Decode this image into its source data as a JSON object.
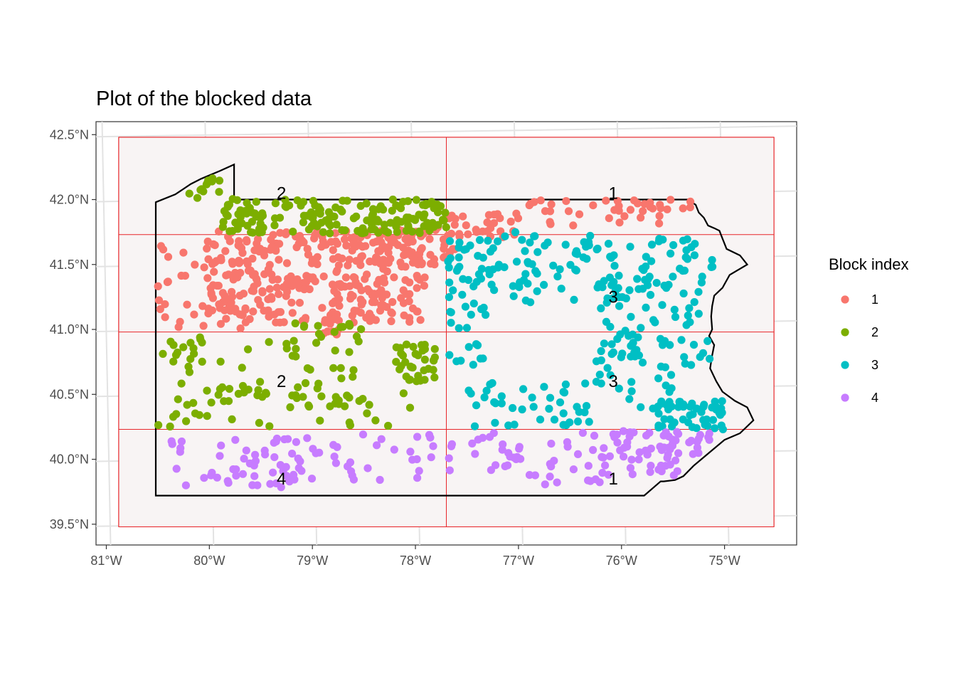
{
  "chart_data": {
    "type": "scatter",
    "title": "Plot of the blocked data",
    "xlabel": "",
    "ylabel": "",
    "x_ticks": [
      "81°W",
      "80°W",
      "79°W",
      "78°W",
      "77°W",
      "76°W",
      "75°W"
    ],
    "x_tick_values": [
      -81,
      -80,
      -79,
      -78,
      -77,
      -76,
      -75
    ],
    "y_ticks": [
      "42.5°N",
      "42.0°N",
      "41.5°N",
      "41.0°N",
      "40.5°N",
      "40.0°N",
      "39.5°N"
    ],
    "y_tick_values": [
      42.5,
      42.0,
      41.5,
      41.0,
      40.5,
      40.0,
      39.5
    ],
    "xlim": [
      -81.1,
      -74.3
    ],
    "ylim": [
      39.34,
      42.6
    ],
    "grid": true,
    "legend": {
      "title": "Block index",
      "position": "right",
      "entries": [
        {
          "label": "1",
          "color": "#F8766D"
        },
        {
          "label": "2",
          "color": "#7CAE00"
        },
        {
          "label": "3",
          "color": "#00BFC4"
        },
        {
          "label": "4",
          "color": "#C77CFF"
        }
      ]
    },
    "blocks": {
      "x_breaks": [
        -80.88,
        -77.7,
        -74.52
      ],
      "y_breaks": [
        39.48,
        40.23,
        40.98,
        41.73,
        42.48
      ],
      "fill": "#f8f4f4",
      "line_color": "#e8262a"
    },
    "block_labels": [
      {
        "text": "2",
        "x": -79.3,
        "y": 42.05
      },
      {
        "text": "1",
        "x": -76.08,
        "y": 42.05
      },
      {
        "text": "3",
        "x": -76.08,
        "y": 41.25
      },
      {
        "text": "2",
        "x": -79.3,
        "y": 40.6
      },
      {
        "text": "3",
        "x": -76.08,
        "y": 40.6
      },
      {
        "text": "4",
        "x": -79.3,
        "y": 39.85
      },
      {
        "text": "1",
        "x": -76.08,
        "y": 39.85
      }
    ],
    "boundary": [
      [
        -80.52,
        41.98
      ],
      [
        -80.33,
        42.04
      ],
      [
        -80.18,
        42.12
      ],
      [
        -80.08,
        42.16
      ],
      [
        -79.9,
        42.22
      ],
      [
        -79.76,
        42.27
      ],
      [
        -79.76,
        42.0
      ],
      [
        -78.5,
        42.0
      ],
      [
        -77.0,
        42.0
      ],
      [
        -75.36,
        42.0
      ],
      [
        -75.28,
        41.96
      ],
      [
        -75.25,
        41.9
      ],
      [
        -75.2,
        41.86
      ],
      [
        -75.16,
        41.8
      ],
      [
        -75.1,
        41.78
      ],
      [
        -75.05,
        41.76
      ],
      [
        -75.02,
        41.7
      ],
      [
        -74.98,
        41.62
      ],
      [
        -74.85,
        41.57
      ],
      [
        -74.78,
        41.5
      ],
      [
        -74.95,
        41.42
      ],
      [
        -75.02,
        41.32
      ],
      [
        -75.1,
        41.26
      ],
      [
        -75.12,
        41.18
      ],
      [
        -75.13,
        41.1
      ],
      [
        -75.12,
        41.0
      ],
      [
        -75.15,
        40.95
      ],
      [
        -75.1,
        40.88
      ],
      [
        -75.12,
        40.8
      ],
      [
        -75.14,
        40.7
      ],
      [
        -75.08,
        40.6
      ],
      [
        -75.02,
        40.52
      ],
      [
        -74.9,
        40.45
      ],
      [
        -74.78,
        40.4
      ],
      [
        -74.72,
        40.3
      ],
      [
        -74.85,
        40.2
      ],
      [
        -75.0,
        40.15
      ],
      [
        -75.15,
        40.05
      ],
      [
        -75.3,
        39.95
      ],
      [
        -75.4,
        39.87
      ],
      [
        -75.48,
        39.84
      ],
      [
        -75.59,
        39.83
      ],
      [
        -75.62,
        39.83
      ],
      [
        -75.78,
        39.72
      ],
      [
        -76.5,
        39.72
      ],
      [
        -77.5,
        39.72
      ],
      [
        -78.5,
        39.72
      ],
      [
        -79.5,
        39.72
      ],
      [
        -80.52,
        39.72
      ],
      [
        -80.52,
        40.5
      ],
      [
        -80.52,
        41.0
      ],
      [
        -80.52,
        41.98
      ]
    ],
    "series": [
      {
        "name": "1",
        "color": "#F8766D",
        "regions": [
          {
            "x": [
              -80.0,
              -77.9
            ],
            "y": [
              41.05,
              41.76
            ],
            "n": 330
          },
          {
            "x": [
              -80.5,
              -79.6
            ],
            "y": [
              41.0,
              41.7
            ],
            "n": 45
          },
          {
            "x": [
              -78.4,
              -77.6
            ],
            "y": [
              41.5,
              41.8
            ],
            "n": 55
          },
          {
            "x": [
              -77.7,
              -77.0
            ],
            "y": [
              41.7,
              41.9
            ],
            "n": 30
          },
          {
            "x": [
              -76.9,
              -75.0
            ],
            "y": [
              41.8,
              42.1
            ],
            "n": 40
          },
          {
            "x": [
              -78.9,
              -78.7
            ],
            "y": [
              40.95,
              41.1
            ],
            "n": 10
          }
        ]
      },
      {
        "name": "2",
        "color": "#7CAE00",
        "regions": [
          {
            "x": [
              -79.9,
              -77.7
            ],
            "y": [
              41.74,
              42.02
            ],
            "n": 170
          },
          {
            "x": [
              -80.3,
              -79.9
            ],
            "y": [
              42.0,
              42.18
            ],
            "n": 12
          },
          {
            "x": [
              -80.5,
              -79.4
            ],
            "y": [
              40.25,
              41.0
            ],
            "n": 55
          },
          {
            "x": [
              -79.3,
              -78.5
            ],
            "y": [
              40.4,
              41.05
            ],
            "n": 50
          },
          {
            "x": [
              -78.2,
              -77.8
            ],
            "y": [
              40.6,
              40.9
            ],
            "n": 35
          },
          {
            "x": [
              -79.0,
              -78.0
            ],
            "y": [
              40.25,
              40.55
            ],
            "n": 12
          }
        ]
      },
      {
        "name": "3",
        "color": "#00BFC4",
        "regions": [
          {
            "x": [
              -77.7,
              -76.2
            ],
            "y": [
              41.2,
              41.75
            ],
            "n": 90
          },
          {
            "x": [
              -76.2,
              -75.1
            ],
            "y": [
              40.7,
              41.7
            ],
            "n": 110
          },
          {
            "x": [
              -77.7,
              -77.3
            ],
            "y": [
              40.7,
              41.2
            ],
            "n": 20
          },
          {
            "x": [
              -77.5,
              -76.3
            ],
            "y": [
              40.25,
              40.6
            ],
            "n": 40
          },
          {
            "x": [
              -75.7,
              -75.0
            ],
            "y": [
              40.23,
              40.45
            ],
            "n": 50
          },
          {
            "x": [
              -76.3,
              -75.5
            ],
            "y": [
              40.4,
              40.9
            ],
            "n": 25
          }
        ]
      },
      {
        "name": "4",
        "color": "#C77CFF",
        "regions": [
          {
            "x": [
              -80.4,
              -79.1
            ],
            "y": [
              39.76,
              40.2
            ],
            "n": 55
          },
          {
            "x": [
              -79.1,
              -77.8
            ],
            "y": [
              39.8,
              40.2
            ],
            "n": 30
          },
          {
            "x": [
              -77.7,
              -76.2
            ],
            "y": [
              39.8,
              40.22
            ],
            "n": 45
          },
          {
            "x": [
              -76.2,
              -75.1
            ],
            "y": [
              39.86,
              40.22
            ],
            "n": 70
          }
        ]
      }
    ]
  }
}
